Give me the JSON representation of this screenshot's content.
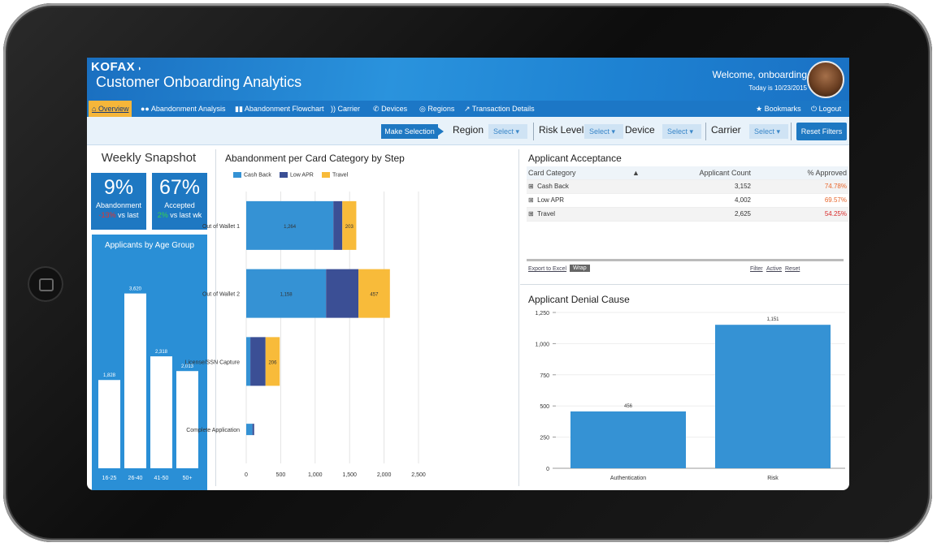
{
  "header": {
    "logo": "KOFAX",
    "title": "Customer Onboarding Analytics",
    "welcome": "Welcome, onboarding",
    "date": "Today is 10/23/2015"
  },
  "nav": {
    "items": [
      {
        "label": "Overview",
        "icon": "home-icon"
      },
      {
        "label": "Abandonment Analysis",
        "icon": "binoculars-icon"
      },
      {
        "label": "Abandonment Flowchart",
        "icon": "flowchart-icon"
      },
      {
        "label": "Carrier",
        "icon": "signal-icon"
      },
      {
        "label": "Devices",
        "icon": "phone-icon"
      },
      {
        "label": "Regions",
        "icon": "globe-icon"
      },
      {
        "label": "Transaction Details",
        "icon": "trend-icon"
      }
    ],
    "bookmarks": "Bookmarks",
    "logout": "Logout"
  },
  "filters": {
    "make_selection": "Make Selection",
    "region_label": "Region",
    "risk_label": "Risk Level",
    "device_label": "Device",
    "carrier_label": "Carrier",
    "select_text": "Select",
    "reset": "Reset Filters"
  },
  "snapshot": {
    "title": "Weekly Snapshot",
    "abandonment": {
      "value": "9%",
      "label": "Abandonment",
      "change": "-13%",
      "compare": "vs last"
    },
    "accepted": {
      "value": "67%",
      "label": "Accepted",
      "change": "2%",
      "compare": "vs last wk"
    }
  },
  "chart_data": [
    {
      "type": "bar",
      "title": "Applicants by Age Group",
      "categories": [
        "16-25",
        "26-40",
        "41-50",
        "50+"
      ],
      "values": [
        1828,
        3620,
        2318,
        2013
      ],
      "value_labels": [
        "1,828",
        "3,620",
        "2,318",
        "2,013"
      ],
      "ylim": [
        0,
        4000
      ]
    },
    {
      "type": "bar",
      "orientation": "horizontal",
      "stacked": true,
      "title": "Abandonment per Card Category by Step",
      "categories": [
        "Out of Wallet 1",
        "Out of Wallet 2",
        "License/SSN Capture",
        "Complete Application"
      ],
      "series": [
        {
          "name": "Cash Back",
          "color": "#3592d4",
          "values": [
            1264,
            1158,
            60,
            90
          ],
          "labels": [
            "1,264",
            "1,158",
            "",
            ""
          ]
        },
        {
          "name": "Low APR",
          "color": "#3b4f95",
          "values": [
            130,
            470,
            220,
            25
          ],
          "labels": [
            "",
            "",
            "",
            ""
          ]
        },
        {
          "name": "Travel",
          "color": "#f8bb3a",
          "values": [
            203,
            457,
            206,
            0
          ],
          "labels": [
            "203",
            "457",
            "206",
            ""
          ]
        }
      ],
      "xticks": [
        "0",
        "500",
        "1,000",
        "1,500",
        "2,000",
        "2,500"
      ],
      "xlim": [
        0,
        2500
      ],
      "legend": "top-left"
    },
    {
      "type": "bar",
      "title": "Applicant Denial Cause",
      "categories": [
        "Authentication",
        "Risk"
      ],
      "values": [
        456,
        1151
      ],
      "value_labels": [
        "456",
        "1,151"
      ],
      "yticks": [
        "0",
        "250",
        "500",
        "750",
        "1,000",
        "1,250"
      ],
      "ylim": [
        0,
        1250
      ],
      "color": "#3592d4"
    }
  ],
  "acceptance": {
    "title": "Applicant Acceptance",
    "columns": [
      "Card Category",
      "Applicant Count",
      "% Approved"
    ],
    "rows": [
      {
        "category": "Cash Back",
        "count": "3,152",
        "pct": "74.78%",
        "pct_color": "#e8662b"
      },
      {
        "category": "Low APR",
        "count": "4,002",
        "pct": "69.57%",
        "pct_color": "#e8662b"
      },
      {
        "category": "Travel",
        "count": "2,625",
        "pct": "54.25%",
        "pct_color": "#d92b2b"
      }
    ],
    "export": "Export to Excel",
    "wrap": "Wrap",
    "filter": "Filter",
    "active": "Active",
    "reset": "Reset"
  }
}
